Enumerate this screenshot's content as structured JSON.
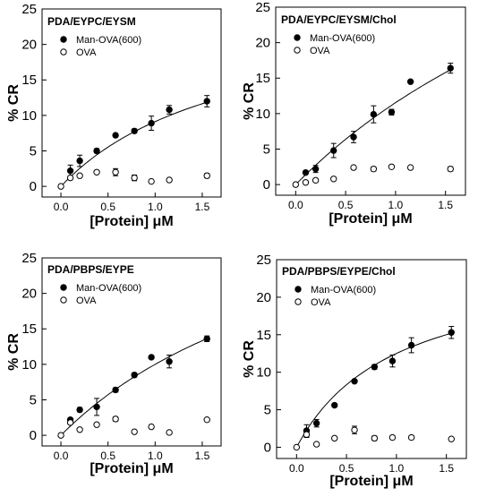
{
  "chart_data": [
    {
      "type": "scatter",
      "title": "PDA/EYPC/EYSM",
      "xlabel": "[Protein] μM",
      "ylabel": "% CR",
      "xlim": [
        -0.2,
        1.7
      ],
      "ylim": [
        -1.5,
        25
      ],
      "xticks": [
        "0.0",
        "0.5",
        "1.0",
        "1.5"
      ],
      "yticks": [
        "0",
        "5",
        "10",
        "15",
        "20",
        "25"
      ],
      "legend_position": "top-left",
      "fit_curve": {
        "series": "Man-OVA(600)",
        "form": "saturation",
        "ymax": 26.0,
        "k": 1.85
      },
      "series": [
        {
          "name": "Man-OVA(600)",
          "marker": "filled-circle",
          "x": [
            0.1,
            0.2,
            0.38,
            0.58,
            0.78,
            0.96,
            1.15,
            1.55
          ],
          "y": [
            2.2,
            3.6,
            5.0,
            7.2,
            7.8,
            8.9,
            10.8,
            12.0
          ],
          "err": [
            0.8,
            0.8,
            0.3,
            0.2,
            0.3,
            1.0,
            0.6,
            0.8
          ]
        },
        {
          "name": "OVA",
          "marker": "open-circle",
          "x": [
            0.0,
            0.1,
            0.2,
            0.38,
            0.58,
            0.78,
            0.96,
            1.15,
            1.55
          ],
          "y": [
            0.0,
            1.2,
            1.5,
            2.0,
            2.0,
            1.2,
            0.7,
            0.9,
            1.5
          ],
          "err": [
            0,
            0,
            0,
            0,
            0.5,
            0.4,
            0,
            0,
            0.3
          ]
        }
      ]
    },
    {
      "type": "scatter",
      "title": "PDA/EYPC/EYSM/Chol",
      "xlabel": "[Protein] μM",
      "ylabel": "% CR",
      "xlim": [
        -0.2,
        1.7
      ],
      "ylim": [
        -1.5,
        25
      ],
      "xticks": [
        "0.0",
        "0.5",
        "1.0",
        "1.5"
      ],
      "yticks": [
        "0",
        "5",
        "10",
        "15",
        "20",
        "25"
      ],
      "legend_position": "top-left",
      "fit_curve": {
        "series": "Man-OVA(600)",
        "form": "saturation",
        "ymax": 60.0,
        "k": 4.2
      },
      "series": [
        {
          "name": "Man-OVA(600)",
          "marker": "filled-circle",
          "x": [
            0.1,
            0.2,
            0.38,
            0.58,
            0.78,
            0.96,
            1.15,
            1.55
          ],
          "y": [
            1.7,
            2.2,
            4.8,
            6.7,
            9.9,
            10.2,
            14.5,
            16.4
          ],
          "err": [
            0.2,
            0.5,
            1.0,
            0.8,
            1.2,
            0.4,
            0,
            0.7
          ]
        },
        {
          "name": "OVA",
          "marker": "open-circle",
          "x": [
            0.0,
            0.1,
            0.2,
            0.38,
            0.58,
            0.78,
            0.96,
            1.15,
            1.55
          ],
          "y": [
            0.0,
            0.3,
            0.6,
            0.8,
            2.4,
            2.2,
            2.5,
            2.4,
            2.2
          ],
          "err": [
            0,
            0,
            0,
            0,
            0,
            0.3,
            0,
            0,
            0.3
          ]
        }
      ]
    },
    {
      "type": "scatter",
      "title": "PDA/PBPS/EYPE",
      "xlabel": "[Protein] μM",
      "ylabel": "% CR",
      "xlim": [
        -0.2,
        1.7
      ],
      "ylim": [
        -1.5,
        25
      ],
      "xticks": [
        "0.0",
        "0.5",
        "1.0",
        "1.5"
      ],
      "yticks": [
        "0",
        "5",
        "10",
        "15",
        "20",
        "25"
      ],
      "legend_position": "top-left",
      "fit_curve": {
        "series": "Man-OVA(600)",
        "form": "saturation",
        "ymax": 40.0,
        "k": 3.0
      },
      "series": [
        {
          "name": "Man-OVA(600)",
          "marker": "filled-circle",
          "x": [
            0.1,
            0.2,
            0.38,
            0.58,
            0.78,
            0.96,
            1.15,
            1.55
          ],
          "y": [
            2.2,
            3.6,
            4.0,
            6.4,
            8.5,
            11.0,
            10.4,
            13.6
          ],
          "err": [
            0.2,
            0.3,
            1.2,
            0.3,
            0.3,
            0.2,
            0.9,
            0.4
          ]
        },
        {
          "name": "OVA",
          "marker": "open-circle",
          "x": [
            0.0,
            0.1,
            0.2,
            0.38,
            0.58,
            0.78,
            0.96,
            1.15,
            1.55
          ],
          "y": [
            0.0,
            1.8,
            0.8,
            1.5,
            2.3,
            0.5,
            1.2,
            0.4,
            2.2
          ],
          "err": [
            0,
            0,
            0,
            0,
            0.3,
            0,
            0,
            0,
            0
          ]
        }
      ]
    },
    {
      "type": "scatter",
      "title": "PDA/PBPS/EYPE/Chol",
      "xlabel": "[Protein] μM",
      "ylabel": "% CR",
      "xlim": [
        -0.2,
        1.7
      ],
      "ylim": [
        -1.5,
        25
      ],
      "xticks": [
        "0.0",
        "0.5",
        "1.0",
        "1.5"
      ],
      "yticks": [
        "0",
        "5",
        "10",
        "15",
        "20",
        "25"
      ],
      "legend_position": "top-left",
      "fit_curve": {
        "series": "Man-OVA(600)",
        "form": "saturation",
        "ymax": 25.0,
        "k": 1.0
      },
      "series": [
        {
          "name": "Man-OVA(600)",
          "marker": "filled-circle",
          "x": [
            0.1,
            0.2,
            0.38,
            0.58,
            0.78,
            0.96,
            1.15,
            1.55
          ],
          "y": [
            2.2,
            3.2,
            5.6,
            8.8,
            10.7,
            11.5,
            13.6,
            15.3
          ],
          "err": [
            0.8,
            0.5,
            0.2,
            0.2,
            0.3,
            0.8,
            1.0,
            0.8
          ]
        },
        {
          "name": "OVA",
          "marker": "open-circle",
          "x": [
            0.0,
            0.1,
            0.2,
            0.38,
            0.58,
            0.78,
            0.96,
            1.15,
            1.55
          ],
          "y": [
            0.0,
            1.7,
            0.4,
            1.2,
            2.3,
            1.2,
            1.3,
            1.3,
            1.1
          ],
          "err": [
            0,
            0.4,
            0,
            0,
            0.5,
            0.3,
            0.2,
            0.2,
            0
          ]
        }
      ]
    }
  ]
}
